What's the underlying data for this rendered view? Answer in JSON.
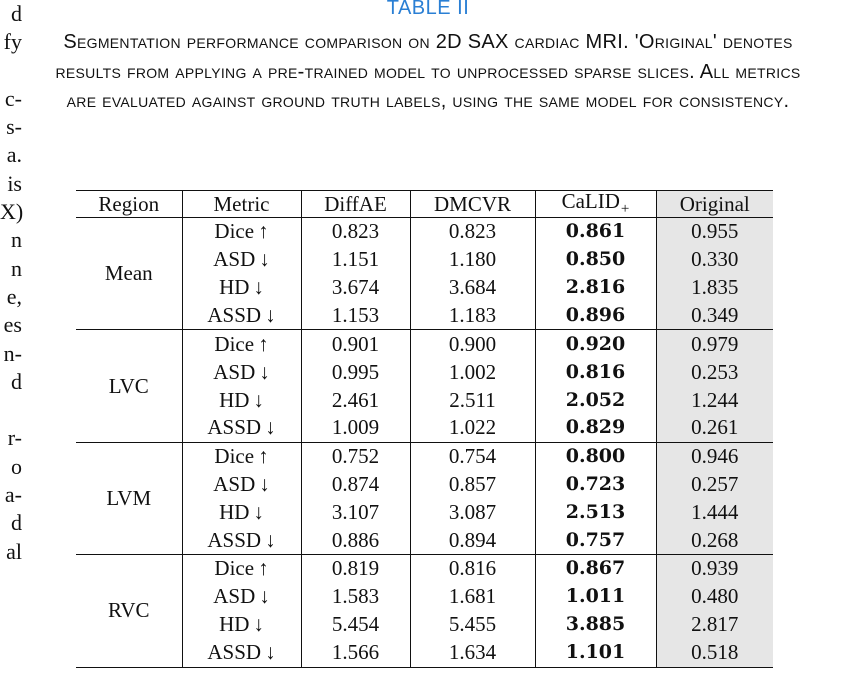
{
  "left_margin_text": [
    "d",
    "fy",
    "",
    "c-",
    "s-",
    "a.",
    "is",
    "X)",
    "n",
    "n",
    "e,",
    "es",
    "n-",
    "d",
    "",
    "r-",
    "o",
    "a-",
    "d",
    "al"
  ],
  "table_number": "TABLE II",
  "caption": "Segmentation performance comparison on 2D SAX cardiac MRI. 'Original' denotes results from applying a pre-trained model to unprocessed sparse slices. All metrics are evaluated against ground truth labels, using the same model for consistency.",
  "table": {
    "headers": {
      "region": "Region",
      "metric": "Metric",
      "diffae": "DiffAE",
      "dmcvr": "DMCVR",
      "calid": "CaLID",
      "calid_sub": "+",
      "original": "Original"
    },
    "groups": [
      {
        "region": "Mean",
        "rows": [
          {
            "metric": "Dice",
            "arrow": "↑",
            "diffae": "0.823",
            "dmcvr": "0.823",
            "calid": "0.861",
            "original": "0.955"
          },
          {
            "metric": "ASD",
            "arrow": "↓",
            "diffae": "1.151",
            "dmcvr": "1.180",
            "calid": "0.850",
            "original": "0.330"
          },
          {
            "metric": "HD",
            "arrow": "↓",
            "diffae": "3.674",
            "dmcvr": "3.684",
            "calid": "2.816",
            "original": "1.835"
          },
          {
            "metric": "ASSD",
            "arrow": "↓",
            "diffae": "1.153",
            "dmcvr": "1.183",
            "calid": "0.896",
            "original": "0.349"
          }
        ]
      },
      {
        "region": "LVC",
        "rows": [
          {
            "metric": "Dice",
            "arrow": "↑",
            "diffae": "0.901",
            "dmcvr": "0.900",
            "calid": "0.920",
            "original": "0.979"
          },
          {
            "metric": "ASD",
            "arrow": "↓",
            "diffae": "0.995",
            "dmcvr": "1.002",
            "calid": "0.816",
            "original": "0.253"
          },
          {
            "metric": "HD",
            "arrow": "↓",
            "diffae": "2.461",
            "dmcvr": "2.511",
            "calid": "2.052",
            "original": "1.244"
          },
          {
            "metric": "ASSD",
            "arrow": "↓",
            "diffae": "1.009",
            "dmcvr": "1.022",
            "calid": "0.829",
            "original": "0.261"
          }
        ]
      },
      {
        "region": "LVM",
        "rows": [
          {
            "metric": "Dice",
            "arrow": "↑",
            "diffae": "0.752",
            "dmcvr": "0.754",
            "calid": "0.800",
            "original": "0.946"
          },
          {
            "metric": "ASD",
            "arrow": "↓",
            "diffae": "0.874",
            "dmcvr": "0.857",
            "calid": "0.723",
            "original": "0.257"
          },
          {
            "metric": "HD",
            "arrow": "↓",
            "diffae": "3.107",
            "dmcvr": "3.087",
            "calid": "2.513",
            "original": "1.444"
          },
          {
            "metric": "ASSD",
            "arrow": "↓",
            "diffae": "0.886",
            "dmcvr": "0.894",
            "calid": "0.757",
            "original": "0.268"
          }
        ]
      },
      {
        "region": "RVC",
        "rows": [
          {
            "metric": "Dice",
            "arrow": "↑",
            "diffae": "0.819",
            "dmcvr": "0.816",
            "calid": "0.867",
            "original": "0.939"
          },
          {
            "metric": "ASD",
            "arrow": "↓",
            "diffae": "1.583",
            "dmcvr": "1.681",
            "calid": "1.011",
            "original": "0.480"
          },
          {
            "metric": "HD",
            "arrow": "↓",
            "diffae": "5.454",
            "dmcvr": "5.455",
            "calid": "3.885",
            "original": "2.817"
          },
          {
            "metric": "ASSD",
            "arrow": "↓",
            "diffae": "1.566",
            "dmcvr": "1.634",
            "calid": "1.101",
            "original": "0.518"
          }
        ]
      }
    ]
  },
  "colors": {
    "table_number": "#2a7fd4",
    "original_column_shade": "#e6e6e6",
    "text": "#111111"
  }
}
